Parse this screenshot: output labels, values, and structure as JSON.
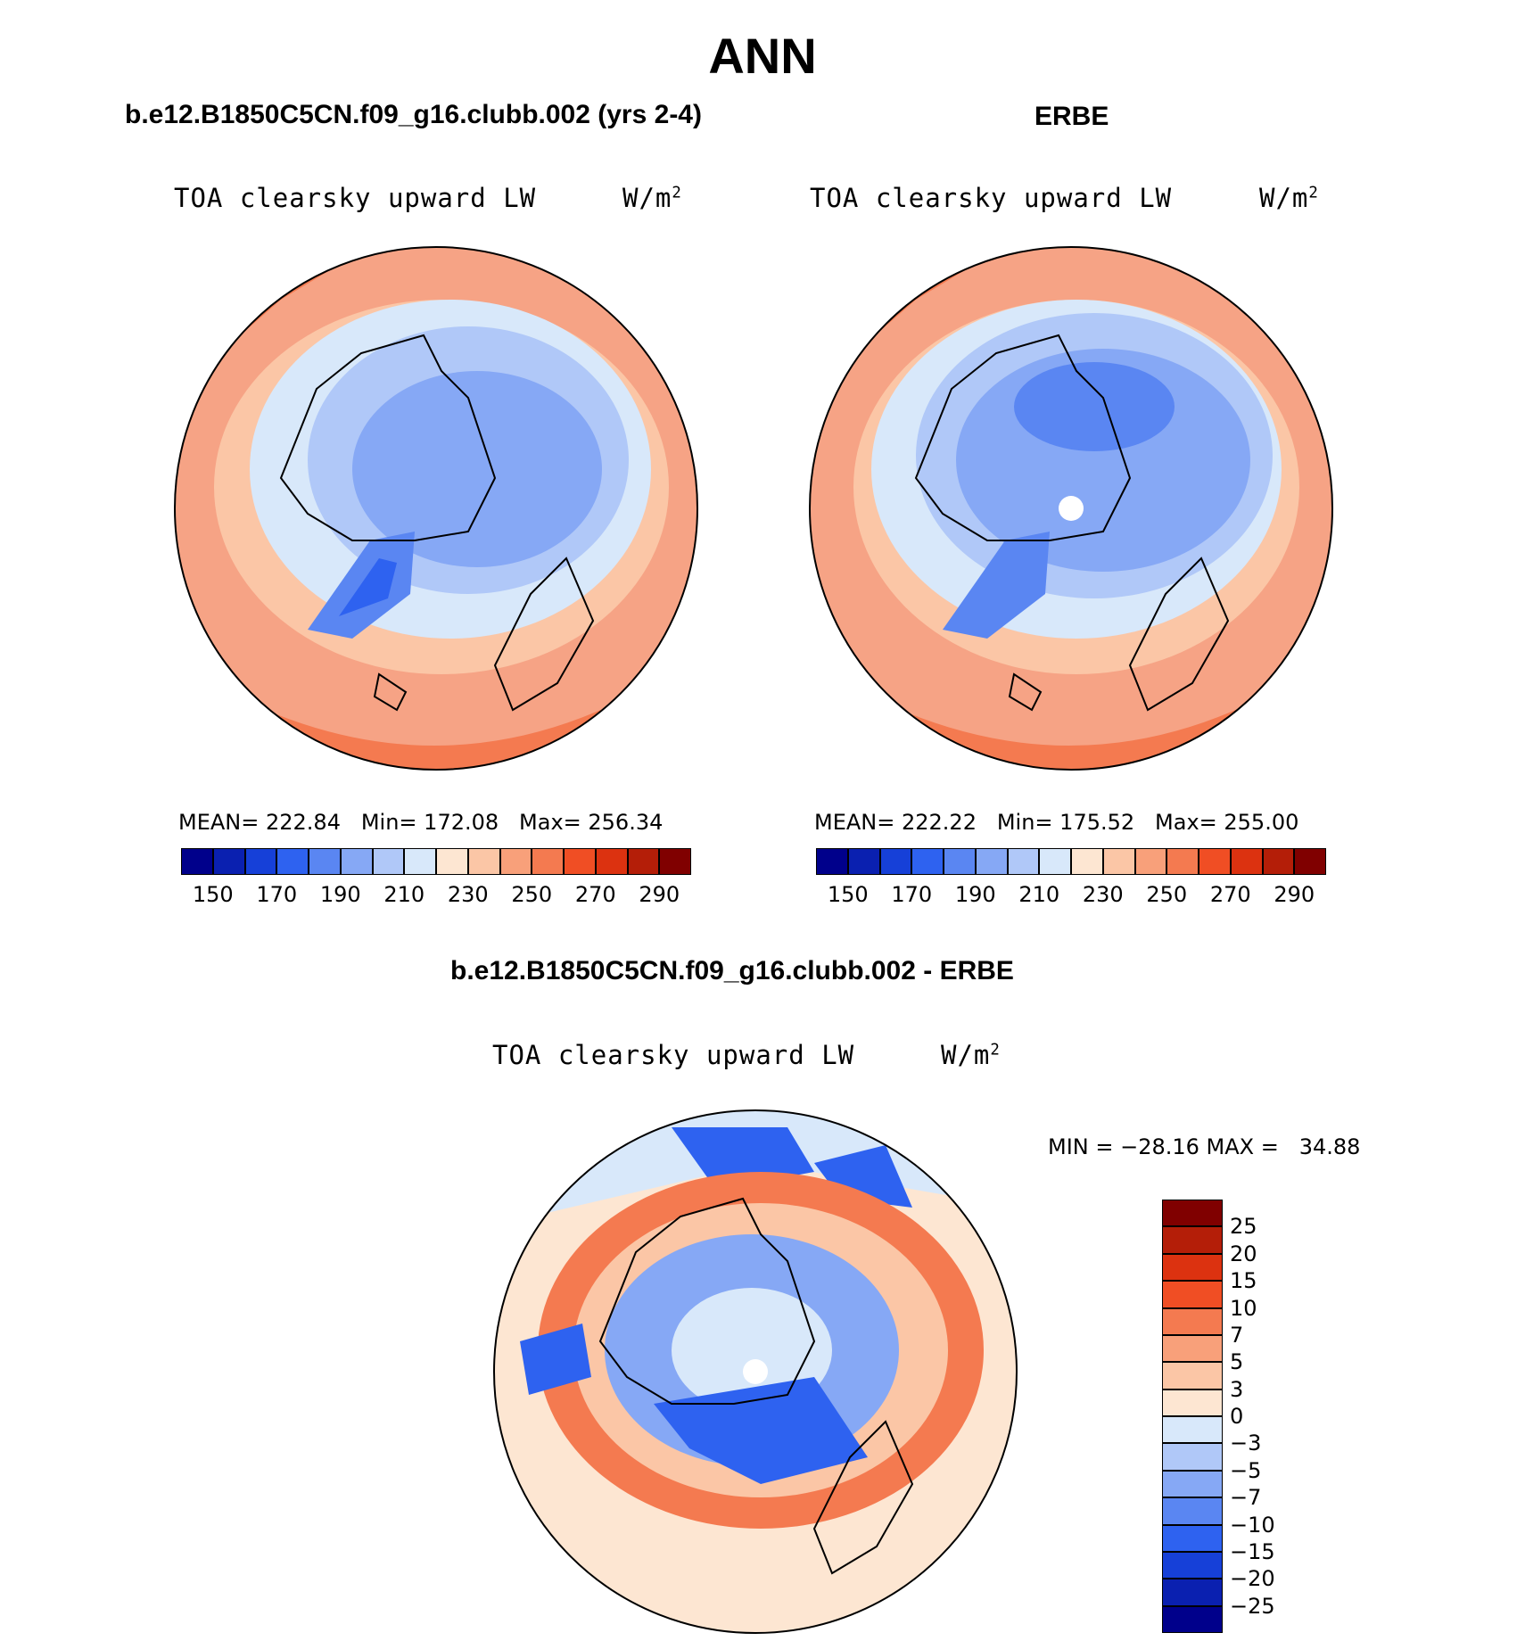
{
  "figure": {
    "title": "ANN",
    "left_title": "b.e12.B1850C5CN.f09_g16.clubb.002 (yrs 2-4)",
    "right_title": "ERBE",
    "diff_title": "b.e12.B1850C5CN.f09_g16.clubb.002 - ERBE"
  },
  "panels": [
    {
      "id": "model",
      "variable": "TOA clearsky upward LW",
      "units": "W/m",
      "units_sup": "2",
      "stats": "MEAN= 222.84   Min= 172.08   Max= 256.34",
      "mean": 222.84,
      "min": 172.08,
      "max": 256.34
    },
    {
      "id": "obs",
      "variable": "TOA clearsky upward LW",
      "units": "W/m",
      "units_sup": "2",
      "stats": "MEAN= 222.22   Min= 175.52   Max= 255.00",
      "mean": 222.22,
      "min": 175.52,
      "max": 255.0
    },
    {
      "id": "diff",
      "variable": "TOA clearsky upward LW",
      "units": "W/m",
      "units_sup": "2",
      "stats": "MIN = −28.16 MAX =   34.88",
      "min": -28.16,
      "max": 34.88
    }
  ],
  "colorbars": {
    "absolute": {
      "tick_labels": [
        "150",
        "170",
        "190",
        "210",
        "230",
        "250",
        "270",
        "290"
      ],
      "colors": [
        "#00008b",
        "#0a20b0",
        "#1640d8",
        "#2e62f0",
        "#5a86f2",
        "#86a8f5",
        "#b0c8f8",
        "#d8e8fa",
        "#fde6d2",
        "#fbc6a6",
        "#f8a07a",
        "#f47a50",
        "#f04e24",
        "#dc3210",
        "#b41e08",
        "#800000"
      ]
    },
    "difference": {
      "tick_labels": [
        "25",
        "20",
        "15",
        "10",
        "7",
        "5",
        "3",
        "0",
        "−3",
        "−5",
        "−7",
        "−10",
        "−15",
        "−20",
        "−25"
      ],
      "colors": [
        "#800000",
        "#b41e08",
        "#dc3210",
        "#f04e24",
        "#f47a50",
        "#f8a07a",
        "#fbc6a6",
        "#fde6d2",
        "#d8e8fa",
        "#b0c8f8",
        "#86a8f5",
        "#5a86f2",
        "#2e62f0",
        "#1640d8",
        "#0a20b0",
        "#00008b"
      ]
    }
  },
  "maps": {
    "projection": "north polar stereographic",
    "model_field_colors": [
      "#f6a385",
      "#fbc6a6",
      "#d8e8fa",
      "#b0c8f8",
      "#86a8f5",
      "#5a86f2"
    ],
    "diff_field_colors": [
      "#d8e8fa",
      "#fde6d2",
      "#f47a50",
      "#86a8f5",
      "#2e62f0"
    ]
  }
}
